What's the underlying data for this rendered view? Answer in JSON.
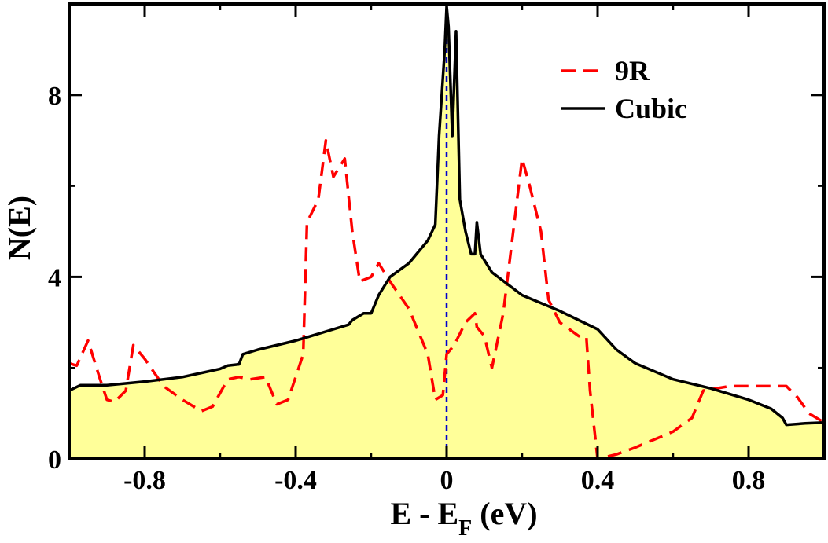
{
  "chart_data": {
    "type": "line",
    "xlabel_main": "E - E",
    "xlabel_sub": "F",
    "xlabel_tail": " (eV)",
    "ylabel": "N(E)",
    "xlim": [
      -1.0,
      1.0
    ],
    "ylim": [
      0,
      10
    ],
    "xticks": [
      -0.8,
      -0.4,
      0,
      0.4,
      0.8
    ],
    "xtick_labels": [
      "-0.8",
      "-0.4",
      "0",
      "0.4",
      "0.8"
    ],
    "yticks": [
      0,
      4,
      8
    ],
    "ytick_labels": [
      "0",
      "4",
      "8"
    ],
    "fermi_level_x": 0,
    "colors": {
      "fill": "#ffff99",
      "cubic": "#000000",
      "r9": "#ff0000",
      "fermi": "#0000cc"
    },
    "legend": [
      {
        "name": "9R",
        "style": "dashed",
        "color": "#ff0000"
      },
      {
        "name": "Cubic",
        "style": "solid",
        "color": "#000000"
      }
    ],
    "series": [
      {
        "name": "Cubic",
        "filled": true,
        "points": [
          [
            -1.0,
            1.5
          ],
          [
            -0.97,
            1.62
          ],
          [
            -0.9,
            1.62
          ],
          [
            -0.8,
            1.7
          ],
          [
            -0.7,
            1.8
          ],
          [
            -0.6,
            1.98
          ],
          [
            -0.58,
            2.05
          ],
          [
            -0.55,
            2.08
          ],
          [
            -0.54,
            2.3
          ],
          [
            -0.5,
            2.4
          ],
          [
            -0.4,
            2.6
          ],
          [
            -0.3,
            2.85
          ],
          [
            -0.26,
            2.95
          ],
          [
            -0.25,
            3.05
          ],
          [
            -0.22,
            3.2
          ],
          [
            -0.2,
            3.2
          ],
          [
            -0.18,
            3.6
          ],
          [
            -0.15,
            4.0
          ],
          [
            -0.1,
            4.3
          ],
          [
            -0.05,
            4.8
          ],
          [
            -0.03,
            5.15
          ],
          [
            -0.02,
            7.1
          ],
          [
            -0.005,
            9.0
          ],
          [
            0.0,
            9.95
          ],
          [
            0.005,
            9.5
          ],
          [
            0.015,
            7.1
          ],
          [
            0.025,
            9.4
          ],
          [
            0.035,
            5.7
          ],
          [
            0.05,
            5.0
          ],
          [
            0.065,
            4.5
          ],
          [
            0.075,
            4.5
          ],
          [
            0.08,
            5.2
          ],
          [
            0.09,
            4.5
          ],
          [
            0.12,
            4.1
          ],
          [
            0.2,
            3.6
          ],
          [
            0.3,
            3.25
          ],
          [
            0.4,
            2.85
          ],
          [
            0.45,
            2.4
          ],
          [
            0.5,
            2.1
          ],
          [
            0.6,
            1.75
          ],
          [
            0.7,
            1.55
          ],
          [
            0.8,
            1.3
          ],
          [
            0.86,
            1.1
          ],
          [
            0.89,
            0.9
          ],
          [
            0.9,
            0.75
          ],
          [
            0.95,
            0.78
          ],
          [
            1.0,
            0.8
          ]
        ]
      },
      {
        "name": "9R",
        "filled": false,
        "points": [
          [
            -1.0,
            2.1
          ],
          [
            -0.98,
            2.05
          ],
          [
            -0.95,
            2.6
          ],
          [
            -0.92,
            1.8
          ],
          [
            -0.9,
            1.3
          ],
          [
            -0.88,
            1.25
          ],
          [
            -0.85,
            1.5
          ],
          [
            -0.83,
            2.5
          ],
          [
            -0.8,
            2.2
          ],
          [
            -0.75,
            1.6
          ],
          [
            -0.7,
            1.3
          ],
          [
            -0.65,
            1.05
          ],
          [
            -0.62,
            1.15
          ],
          [
            -0.58,
            1.75
          ],
          [
            -0.55,
            1.8
          ],
          [
            -0.52,
            1.75
          ],
          [
            -0.48,
            1.8
          ],
          [
            -0.45,
            1.2
          ],
          [
            -0.42,
            1.3
          ],
          [
            -0.38,
            2.3
          ],
          [
            -0.37,
            5.2
          ],
          [
            -0.34,
            5.7
          ],
          [
            -0.32,
            7.0
          ],
          [
            -0.3,
            6.2
          ],
          [
            -0.27,
            6.6
          ],
          [
            -0.25,
            5.0
          ],
          [
            -0.23,
            3.9
          ],
          [
            -0.2,
            4.0
          ],
          [
            -0.18,
            4.3
          ],
          [
            -0.15,
            3.9
          ],
          [
            -0.1,
            3.3
          ],
          [
            -0.05,
            2.3
          ],
          [
            -0.03,
            1.3
          ],
          [
            -0.01,
            1.4
          ],
          [
            0.0,
            2.3
          ],
          [
            0.02,
            2.5
          ],
          [
            0.05,
            3.0
          ],
          [
            0.075,
            3.2
          ],
          [
            0.08,
            2.9
          ],
          [
            0.1,
            2.7
          ],
          [
            0.12,
            2.0
          ],
          [
            0.15,
            3.2
          ],
          [
            0.2,
            6.6
          ],
          [
            0.22,
            6.0
          ],
          [
            0.25,
            5.0
          ],
          [
            0.27,
            3.5
          ],
          [
            0.3,
            3.0
          ],
          [
            0.35,
            2.7
          ],
          [
            0.37,
            2.7
          ],
          [
            0.38,
            1.5
          ],
          [
            0.4,
            0.0
          ],
          [
            0.45,
            0.1
          ],
          [
            0.5,
            0.25
          ],
          [
            0.6,
            0.6
          ],
          [
            0.65,
            0.9
          ],
          [
            0.68,
            1.5
          ],
          [
            0.75,
            1.6
          ],
          [
            0.85,
            1.6
          ],
          [
            0.9,
            1.6
          ],
          [
            0.93,
            1.35
          ],
          [
            0.96,
            1.0
          ],
          [
            1.0,
            0.8
          ]
        ]
      }
    ]
  }
}
